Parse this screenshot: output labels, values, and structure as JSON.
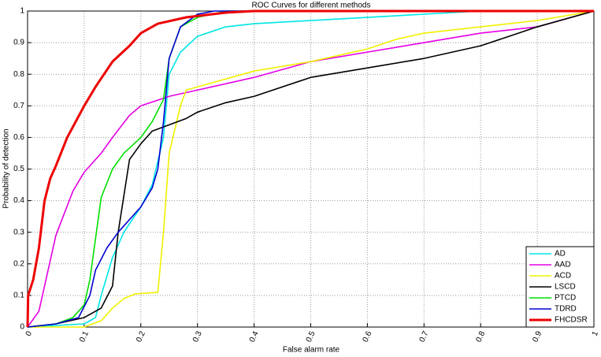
{
  "chart_data": {
    "type": "line",
    "title": "ROC Curves for different methods",
    "xlabel": "False alarm rate",
    "ylabel": "Probability of detection",
    "xlim": [
      0,
      1
    ],
    "ylim": [
      0,
      1
    ],
    "xticks": [
      0,
      0.1,
      0.2,
      0.3,
      0.4,
      0.5,
      0.6,
      0.7,
      0.8,
      0.9,
      1
    ],
    "yticks": [
      0,
      0.1,
      0.2,
      0.3,
      0.4,
      0.5,
      0.6,
      0.7,
      0.8,
      0.9,
      1
    ],
    "grid": true,
    "legend": "lower right",
    "series": [
      {
        "name": "AD",
        "color": "#00e5e5",
        "x": [
          0,
          0.1,
          0.12,
          0.13,
          0.15,
          0.17,
          0.2,
          0.22,
          0.24,
          0.25,
          0.27,
          0.3,
          0.35,
          0.4,
          0.5,
          0.6,
          0.7,
          0.8,
          1
        ],
        "values": [
          0,
          0.01,
          0.03,
          0.1,
          0.22,
          0.3,
          0.38,
          0.45,
          0.6,
          0.8,
          0.87,
          0.92,
          0.95,
          0.96,
          0.97,
          0.98,
          0.99,
          1,
          1
        ]
      },
      {
        "name": "AAD",
        "color": "#e500e5",
        "x": [
          0,
          0.02,
          0.05,
          0.08,
          0.1,
          0.13,
          0.15,
          0.18,
          0.2,
          0.25,
          0.3,
          0.4,
          0.5,
          0.6,
          0.7,
          0.8,
          0.9,
          1
        ],
        "values": [
          0,
          0.05,
          0.29,
          0.43,
          0.49,
          0.55,
          0.6,
          0.67,
          0.7,
          0.73,
          0.75,
          0.79,
          0.84,
          0.87,
          0.9,
          0.93,
          0.95,
          1
        ]
      },
      {
        "name": "ACD",
        "color": "#f0f000",
        "x": [
          0,
          0.1,
          0.13,
          0.15,
          0.17,
          0.19,
          0.23,
          0.24,
          0.25,
          0.27,
          0.28,
          0.3,
          0.4,
          0.5,
          0.6,
          0.65,
          0.7,
          0.8,
          0.9,
          1
        ],
        "values": [
          0,
          0,
          0.02,
          0.06,
          0.09,
          0.105,
          0.11,
          0.3,
          0.55,
          0.7,
          0.75,
          0.76,
          0.81,
          0.84,
          0.88,
          0.91,
          0.93,
          0.95,
          0.97,
          1
        ]
      },
      {
        "name": "LSCD",
        "color": "#000000",
        "x": [
          0,
          0.05,
          0.1,
          0.13,
          0.15,
          0.16,
          0.18,
          0.2,
          0.22,
          0.25,
          0.28,
          0.3,
          0.35,
          0.4,
          0.5,
          0.6,
          0.7,
          0.8,
          0.85,
          0.9,
          1
        ],
        "values": [
          0,
          0.01,
          0.03,
          0.06,
          0.13,
          0.3,
          0.53,
          0.58,
          0.62,
          0.64,
          0.66,
          0.68,
          0.71,
          0.73,
          0.79,
          0.82,
          0.85,
          0.89,
          0.92,
          0.95,
          1
        ]
      },
      {
        "name": "PTCD",
        "color": "#00e000",
        "x": [
          0,
          0.05,
          0.08,
          0.1,
          0.11,
          0.12,
          0.13,
          0.15,
          0.17,
          0.2,
          0.22,
          0.24,
          0.25,
          0.27,
          0.3,
          0.35,
          1
        ],
        "values": [
          0,
          0.01,
          0.03,
          0.07,
          0.15,
          0.28,
          0.41,
          0.5,
          0.55,
          0.6,
          0.65,
          0.72,
          0.85,
          0.95,
          0.98,
          1,
          1
        ]
      },
      {
        "name": "TDRD",
        "color": "#0000d0",
        "x": [
          0,
          0.05,
          0.09,
          0.11,
          0.12,
          0.14,
          0.16,
          0.2,
          0.22,
          0.23,
          0.24,
          0.25,
          0.27,
          0.3,
          0.33,
          1
        ],
        "values": [
          0,
          0.01,
          0.03,
          0.1,
          0.18,
          0.25,
          0.3,
          0.38,
          0.44,
          0.5,
          0.65,
          0.85,
          0.95,
          0.99,
          1,
          1
        ]
      },
      {
        "name": "FHCDSR",
        "color": "#ee0000",
        "x": [
          0,
          0.001,
          0.01,
          0.02,
          0.03,
          0.04,
          0.05,
          0.07,
          0.1,
          0.12,
          0.15,
          0.18,
          0.2,
          0.23,
          0.28,
          0.35,
          0.4,
          1
        ],
        "values": [
          0,
          0.1,
          0.15,
          0.25,
          0.4,
          0.47,
          0.51,
          0.6,
          0.7,
          0.76,
          0.84,
          0.89,
          0.93,
          0.96,
          0.98,
          0.995,
          1,
          1
        ]
      }
    ]
  }
}
